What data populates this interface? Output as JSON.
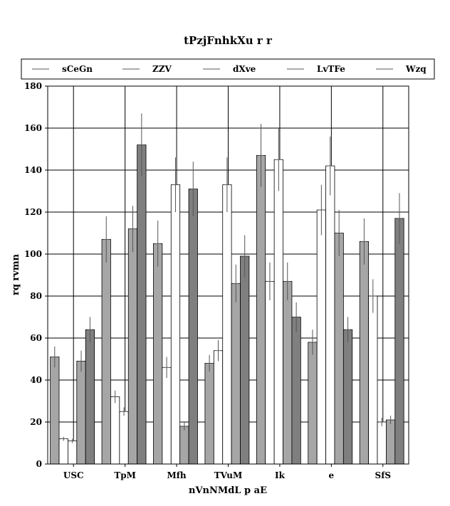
{
  "chart_data": {
    "type": "bar",
    "title": "tPzjFnhkXu r r",
    "xlabel": "nVnNMdL p aE",
    "ylabel": "rq rvmn",
    "categories": [
      "USC",
      "TpM",
      "Mfh",
      "TVuM",
      "Ik",
      "e",
      "SfS"
    ],
    "ylim": [
      0,
      180
    ],
    "yticks": [
      0,
      20,
      40,
      60,
      80,
      100,
      120,
      140,
      160,
      180
    ],
    "grid": true,
    "legend_position": "top",
    "series": [
      {
        "name": "sCeGn",
        "color": "#a6a6a6",
        "values": [
          51,
          107,
          105,
          48,
          147,
          58,
          106
        ],
        "errors": [
          5,
          11,
          11,
          4,
          15,
          6,
          11
        ]
      },
      {
        "name": "ZZV",
        "color": "#ffffff",
        "values": [
          12,
          32,
          46,
          54,
          87,
          121,
          80
        ],
        "errors": [
          1,
          3,
          5,
          5,
          9,
          12,
          8
        ]
      },
      {
        "name": "dXve",
        "color": "#ffffff",
        "values": [
          11,
          25,
          133,
          133,
          145,
          142,
          20
        ],
        "errors": [
          1,
          2,
          13,
          13,
          15,
          14,
          2
        ]
      },
      {
        "name": "LvTFe",
        "color": "#a6a6a6",
        "values": [
          49,
          112,
          18,
          86,
          87,
          110,
          21
        ],
        "errors": [
          5,
          11,
          2,
          9,
          9,
          11,
          2
        ]
      },
      {
        "name": "Wzq",
        "color": "#7f7f7f",
        "values": [
          64,
          152,
          131,
          99,
          70,
          64,
          117
        ],
        "errors": [
          6,
          15,
          13,
          10,
          7,
          6,
          12
        ]
      }
    ]
  }
}
